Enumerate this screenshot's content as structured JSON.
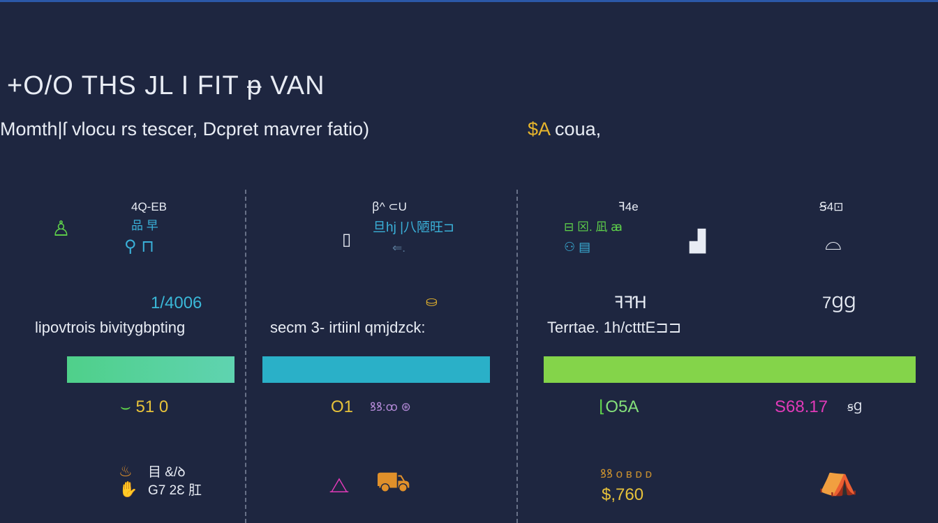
{
  "header": {
    "title": "+O/O THS  JL I FIT ᵽ VAN",
    "subtitle": "Momth|ſ vlocu rs  tescer,  Dcpret mavrer fatio)",
    "accent_symbol": "$A",
    "accent_text": " coua,"
  },
  "colors": {
    "background": "#1e2640",
    "bar1": "#5fd3a0",
    "bar2": "#2ab0c8",
    "bar3": "#84d44a",
    "accent": "#e7b52c",
    "magenta": "#e03ab8",
    "orange": "#e0902a"
  },
  "columns": [
    {
      "top_label": "4Q-EB",
      "icon_labels": [
        "品 早"
      ],
      "value": "1/4006",
      "label": "lipovtrois bivitygbpting",
      "progress": 1.0,
      "metric": "51 0",
      "footer_lines": [
        "目 &/ꝺ",
        "G7 2Ɛ 肛"
      ]
    },
    {
      "top_label": "ꞵ^ ⊂U",
      "icon_labels": [
        "旦hj |八陋旺⊐",
        "⇐."
      ],
      "value": "",
      "label": "secm  3‑  irtiinl qmjdzck:",
      "progress": 1.0,
      "metric": "O1",
      "metric_extra": "ꝸꝸ:ꝏ ⊛"
    },
    {
      "top_label": "ꟻ4e",
      "icon_labels": [
        "⊟ ⊠. 凪 ꜳ"
      ],
      "value": "ꟻꟻꞪ",
      "label": "Terrtae. 1h/ctttE⊐⊐",
      "progress": 1.0,
      "metric": "O5A",
      "footer_small": "ꝸꝸ ᴏ ʙ ᴅ ᴅ",
      "footer_value": "$,760"
    },
    {
      "top_label": "Ꞩ4⊡",
      "value": "7ꞬꞬ",
      "metric": "S68.17",
      "metric_extra": "ꞩꞬ"
    }
  ]
}
